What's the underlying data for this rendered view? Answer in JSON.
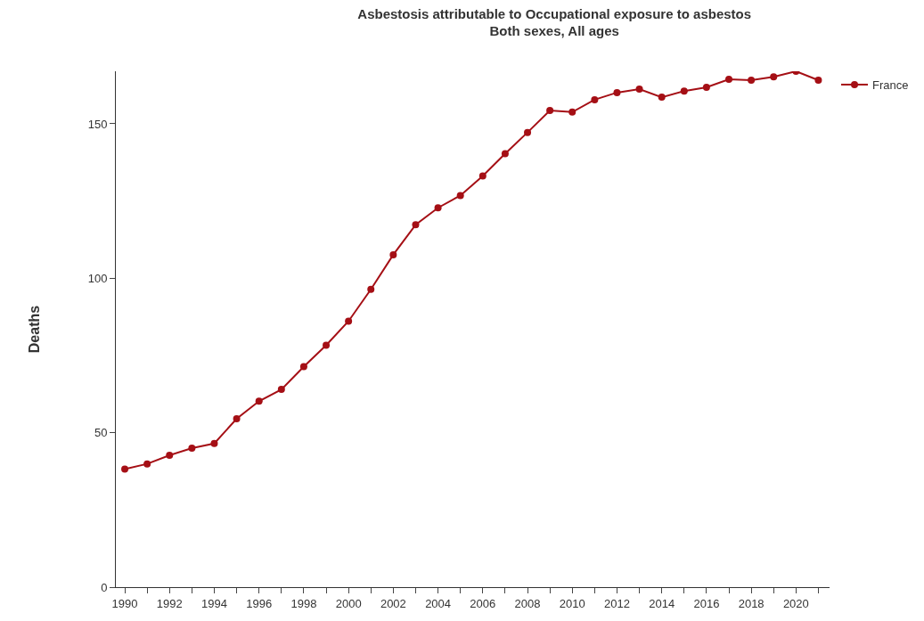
{
  "chart_data": {
    "type": "line",
    "title": "Asbestosis attributable to Occupational exposure to asbestos",
    "subtitle": "Both sexes, All ages",
    "ylabel": "Deaths",
    "x": [
      1990,
      1991,
      1992,
      1993,
      1994,
      1995,
      1996,
      1997,
      1998,
      1999,
      2000,
      2001,
      2002,
      2003,
      2004,
      2005,
      2006,
      2007,
      2008,
      2009,
      2010,
      2011,
      2012,
      2013,
      2014,
      2015,
      2016,
      2017,
      2018,
      2019,
      2020,
      2021
    ],
    "series": [
      {
        "name": "France",
        "color": "#a50f15",
        "values": [
          38.2,
          39.9,
          42.7,
          45.0,
          46.5,
          54.5,
          60.2,
          64.0,
          71.4,
          78.3,
          86.1,
          96.4,
          107.6,
          117.3,
          122.8,
          126.8,
          133.1,
          140.3,
          147.2,
          154.3,
          153.8,
          157.8,
          160.1,
          161.2,
          158.6,
          160.6,
          161.8,
          164.4,
          164.1,
          165.2,
          167.0,
          164.1
        ]
      }
    ],
    "xlim": [
      1989.6,
      2021.5
    ],
    "ylim": [
      0,
      167
    ],
    "xticks": [
      1990,
      {
        "value": 1991,
        "label": null
      },
      1992,
      {
        "value": 1993,
        "label": null
      },
      1994,
      {
        "value": 1995,
        "label": null
      },
      1996,
      {
        "value": 1997,
        "label": null
      },
      1998,
      {
        "value": 1999,
        "label": null
      },
      2000,
      {
        "value": 2001,
        "label": null
      },
      2002,
      {
        "value": 2003,
        "label": null
      },
      2004,
      {
        "value": 2005,
        "label": null
      },
      2006,
      {
        "value": 2007,
        "label": null
      },
      2008,
      {
        "value": 2009,
        "label": null
      },
      2010,
      {
        "value": 2011,
        "label": null
      },
      2012,
      {
        "value": 2013,
        "label": null
      },
      2014,
      {
        "value": 2015,
        "label": null
      },
      2016,
      {
        "value": 2017,
        "label": null
      },
      2018,
      {
        "value": 2019,
        "label": null
      },
      2020,
      {
        "value": 2021,
        "label": null
      }
    ],
    "yticks": [
      0,
      50,
      100,
      150
    ],
    "legend": "top right",
    "marker": "circle",
    "line_style": "solid"
  }
}
